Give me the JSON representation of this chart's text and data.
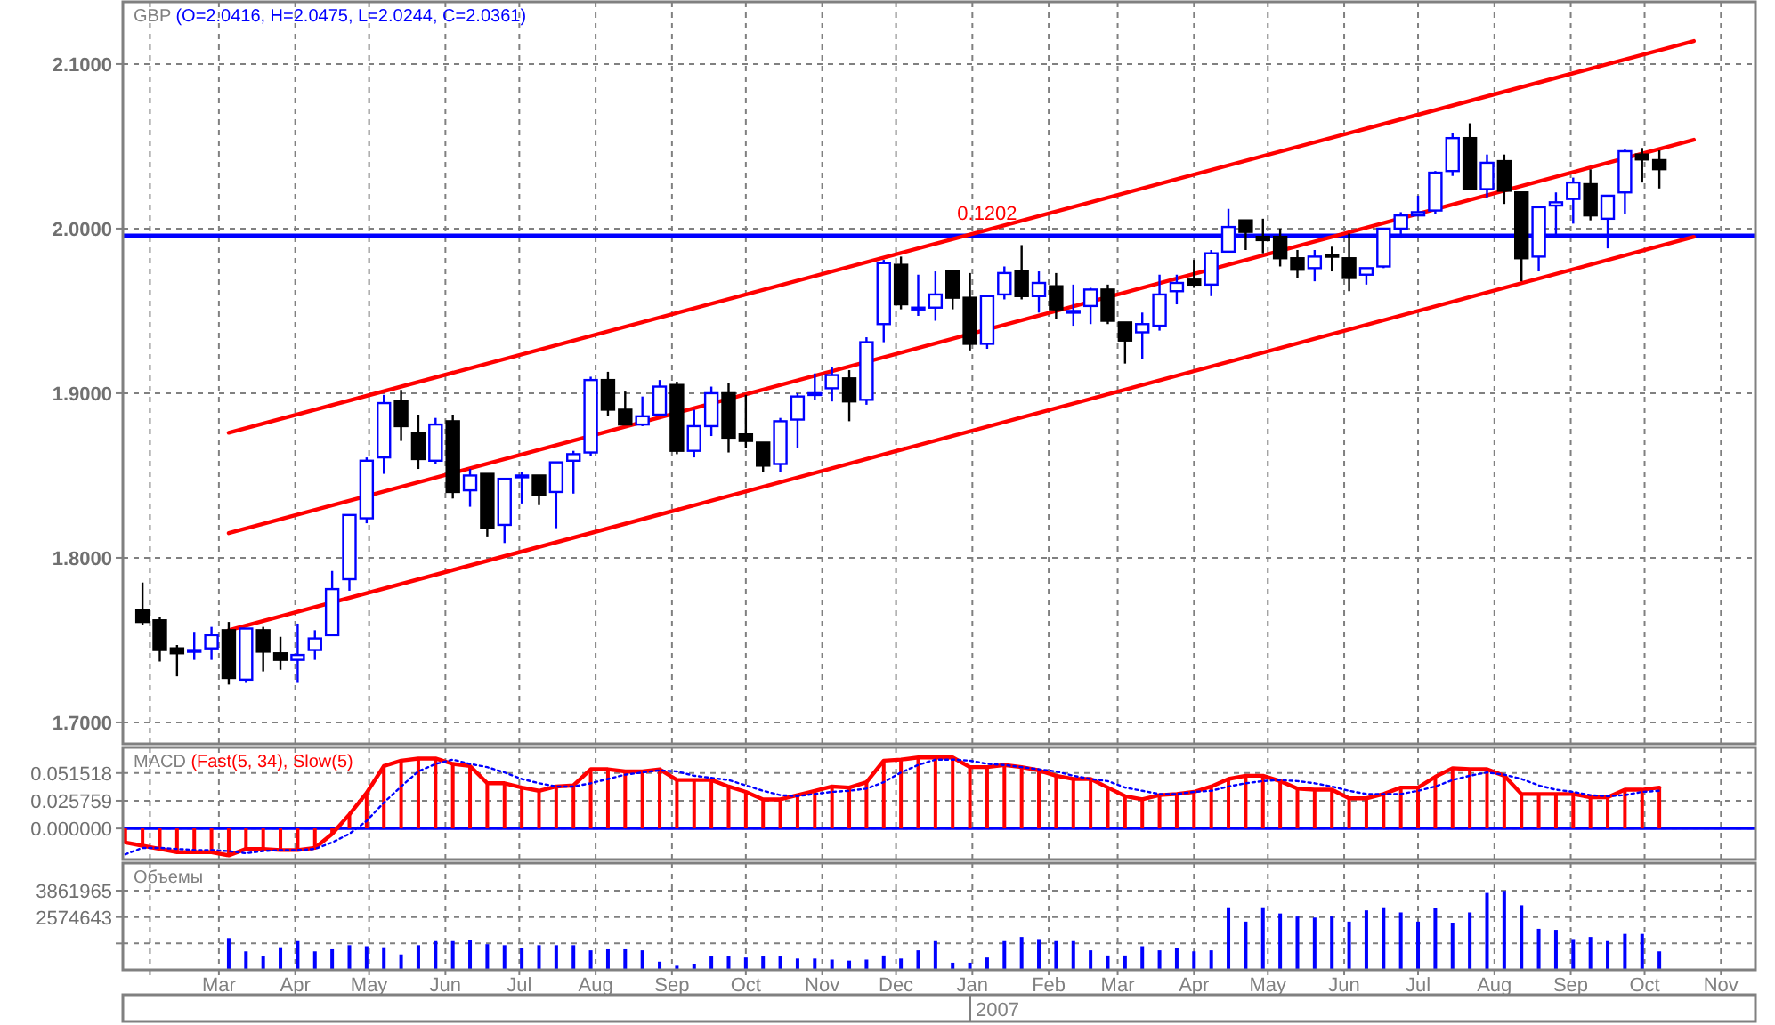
{
  "chart_data": [
    {
      "type": "candlestick",
      "title": "GBP",
      "subtitle": "(O=2.0416, H=2.0475, L=2.0244, C=2.0361)",
      "x": [
        "2006-01-29",
        "2006-02-05",
        "2006-02-12",
        "2006-02-19",
        "2006-02-26",
        "2006-03-05",
        "2006-03-12",
        "2006-03-19",
        "2006-03-26",
        "2006-04-02",
        "2006-04-09",
        "2006-04-16",
        "2006-04-23",
        "2006-04-30",
        "2006-05-07",
        "2006-05-14",
        "2006-05-21",
        "2006-05-28",
        "2006-06-04",
        "2006-06-11",
        "2006-06-18",
        "2006-06-25",
        "2006-07-02",
        "2006-07-09",
        "2006-07-16",
        "2006-07-23",
        "2006-07-30",
        "2006-08-06",
        "2006-08-13",
        "2006-08-20",
        "2006-08-27",
        "2006-09-03",
        "2006-09-10",
        "2006-09-17",
        "2006-09-24",
        "2006-10-01",
        "2006-10-08",
        "2006-10-15",
        "2006-10-22",
        "2006-10-29",
        "2006-11-05",
        "2006-11-12",
        "2006-11-19",
        "2006-11-26",
        "2006-12-03",
        "2006-12-10",
        "2006-12-17",
        "2006-12-24",
        "2006-12-31",
        "2007-01-07",
        "2007-01-14",
        "2007-01-21",
        "2007-01-28",
        "2007-02-04",
        "2007-02-11",
        "2007-02-18",
        "2007-02-25",
        "2007-03-04",
        "2007-03-11",
        "2007-03-18",
        "2007-03-25",
        "2007-04-01",
        "2007-04-08",
        "2007-04-15",
        "2007-04-22",
        "2007-04-29",
        "2007-05-06",
        "2007-05-13",
        "2007-05-20",
        "2007-05-27",
        "2007-06-03",
        "2007-06-10",
        "2007-06-17",
        "2007-06-24",
        "2007-07-01",
        "2007-07-08",
        "2007-07-15",
        "2007-07-22",
        "2007-07-29",
        "2007-08-05",
        "2007-08-12",
        "2007-08-19",
        "2007-08-26",
        "2007-09-02",
        "2007-09-09",
        "2007-09-16",
        "2007-09-23",
        "2007-09-30",
        "2007-10-07"
      ],
      "ohlc": [
        [
          1.768,
          1.785,
          1.759,
          1.761
        ],
        [
          1.762,
          1.764,
          1.737,
          1.744
        ],
        [
          1.745,
          1.747,
          1.728,
          1.742
        ],
        [
          1.743,
          1.755,
          1.738,
          1.744
        ],
        [
          1.745,
          1.758,
          1.738,
          1.753
        ],
        [
          1.756,
          1.761,
          1.723,
          1.727
        ],
        [
          1.726,
          1.757,
          1.724,
          1.757
        ],
        [
          1.756,
          1.758,
          1.731,
          1.743
        ],
        [
          1.742,
          1.752,
          1.732,
          1.738
        ],
        [
          1.738,
          1.76,
          1.724,
          1.741
        ],
        [
          1.744,
          1.756,
          1.738,
          1.751
        ],
        [
          1.753,
          1.792,
          1.753,
          1.781
        ],
        [
          1.787,
          1.826,
          1.78,
          1.826
        ],
        [
          1.824,
          1.861,
          1.821,
          1.859
        ],
        [
          1.861,
          1.899,
          1.851,
          1.894
        ],
        [
          1.895,
          1.902,
          1.871,
          1.88
        ],
        [
          1.876,
          1.887,
          1.854,
          1.86
        ],
        [
          1.859,
          1.885,
          1.857,
          1.881
        ],
        [
          1.883,
          1.887,
          1.836,
          1.84
        ],
        [
          1.841,
          1.854,
          1.831,
          1.85
        ],
        [
          1.851,
          1.851,
          1.813,
          1.818
        ],
        [
          1.82,
          1.848,
          1.809,
          1.848
        ],
        [
          1.849,
          1.852,
          1.833,
          1.85
        ],
        [
          1.85,
          1.85,
          1.832,
          1.838
        ],
        [
          1.84,
          1.858,
          1.818,
          1.858
        ],
        [
          1.859,
          1.865,
          1.839,
          1.863
        ],
        [
          1.864,
          1.91,
          1.862,
          1.908
        ],
        [
          1.908,
          1.913,
          1.886,
          1.89
        ],
        [
          1.89,
          1.901,
          1.881,
          1.881
        ],
        [
          1.881,
          1.898,
          1.88,
          1.886
        ],
        [
          1.887,
          1.908,
          1.886,
          1.904
        ],
        [
          1.905,
          1.907,
          1.863,
          1.865
        ],
        [
          1.865,
          1.89,
          1.861,
          1.88
        ],
        [
          1.88,
          1.904,
          1.874,
          1.9
        ],
        [
          1.9,
          1.906,
          1.864,
          1.873
        ],
        [
          1.875,
          1.899,
          1.867,
          1.871
        ],
        [
          1.87,
          1.87,
          1.852,
          1.856
        ],
        [
          1.857,
          1.885,
          1.852,
          1.883
        ],
        [
          1.884,
          1.9,
          1.867,
          1.898
        ],
        [
          1.899,
          1.912,
          1.896,
          1.9
        ],
        [
          1.903,
          1.916,
          1.895,
          1.911
        ],
        [
          1.909,
          1.914,
          1.883,
          1.895
        ],
        [
          1.896,
          1.934,
          1.893,
          1.931
        ],
        [
          1.942,
          1.981,
          1.931,
          1.979
        ],
        [
          1.978,
          1.983,
          1.951,
          1.954
        ],
        [
          1.951,
          1.972,
          1.947,
          1.952
        ],
        [
          1.952,
          1.974,
          1.944,
          1.96
        ],
        [
          1.974,
          1.974,
          1.951,
          1.958
        ],
        [
          1.958,
          1.973,
          1.926,
          1.93
        ],
        [
          1.93,
          1.959,
          1.927,
          1.959
        ],
        [
          1.96,
          1.977,
          1.957,
          1.973
        ],
        [
          1.974,
          1.99,
          1.957,
          1.959
        ],
        [
          1.959,
          1.974,
          1.949,
          1.967
        ],
        [
          1.965,
          1.973,
          1.945,
          1.951
        ],
        [
          1.949,
          1.966,
          1.941,
          1.95
        ],
        [
          1.953,
          1.964,
          1.942,
          1.963
        ],
        [
          1.963,
          1.966,
          1.942,
          1.944
        ],
        [
          1.943,
          1.943,
          1.918,
          1.932
        ],
        [
          1.937,
          1.949,
          1.921,
          1.942
        ],
        [
          1.941,
          1.972,
          1.938,
          1.96
        ],
        [
          1.962,
          1.972,
          1.954,
          1.967
        ],
        [
          1.969,
          1.981,
          1.964,
          1.966
        ],
        [
          1.966,
          1.987,
          1.959,
          1.985
        ],
        [
          1.986,
          2.012,
          1.986,
          2.001
        ],
        [
          2.005,
          2.005,
          1.987,
          1.998
        ],
        [
          1.995,
          2.006,
          1.985,
          1.993
        ],
        [
          1.995,
          2.0,
          1.977,
          1.982
        ],
        [
          1.982,
          1.987,
          1.97,
          1.975
        ],
        [
          1.976,
          1.987,
          1.968,
          1.983
        ],
        [
          1.984,
          1.989,
          1.974,
          1.983
        ],
        [
          1.982,
          1.997,
          1.962,
          1.97
        ],
        [
          1.972,
          1.976,
          1.966,
          1.976
        ],
        [
          1.977,
          2.0,
          1.976,
          2.0
        ],
        [
          2.0,
          2.01,
          1.994,
          2.008
        ],
        [
          2.008,
          2.02,
          2.008,
          2.01
        ],
        [
          2.011,
          2.035,
          2.009,
          2.034
        ],
        [
          2.035,
          2.058,
          2.032,
          2.055
        ],
        [
          2.055,
          2.064,
          2.024,
          2.024
        ],
        [
          2.024,
          2.045,
          2.019,
          2.04
        ],
        [
          2.041,
          2.045,
          2.015,
          2.023
        ],
        [
          2.022,
          2.022,
          1.968,
          1.982
        ],
        [
          1.983,
          2.013,
          1.974,
          2.013
        ],
        [
          2.014,
          2.022,
          1.996,
          2.016
        ],
        [
          2.018,
          2.031,
          2.003,
          2.028
        ],
        [
          2.027,
          2.036,
          2.005,
          2.008
        ],
        [
          2.006,
          2.02,
          1.988,
          2.02
        ],
        [
          2.022,
          2.048,
          2.009,
          2.047
        ],
        [
          2.045,
          2.049,
          2.028,
          2.042
        ],
        [
          2.0416,
          2.0475,
          2.0244,
          2.0361
        ]
      ],
      "colors": [
        "#000000",
        "#000000",
        "#000000",
        "#0000ff",
        "#0000ff",
        "#000000",
        "#0000ff",
        "#000000",
        "#000000",
        "#0000ff",
        "#0000ff",
        "#0000ff",
        "#0000ff",
        "#0000ff",
        "#0000ff",
        "#000000",
        "#000000",
        "#0000ff",
        "#000000",
        "#0000ff",
        "#000000",
        "#0000ff",
        "#0000ff",
        "#000000",
        "#0000ff",
        "#0000ff",
        "#0000ff",
        "#000000",
        "#000000",
        "#0000ff",
        "#0000ff",
        "#000000",
        "#0000ff",
        "#0000ff",
        "#000000",
        "#000000",
        "#000000",
        "#0000ff",
        "#0000ff",
        "#0000ff",
        "#0000ff",
        "#000000",
        "#0000ff",
        "#0000ff",
        "#000000",
        "#0000ff",
        "#0000ff",
        "#000000",
        "#000000",
        "#0000ff",
        "#0000ff",
        "#000000",
        "#0000ff",
        "#000000",
        "#0000ff",
        "#0000ff",
        "#000000",
        "#000000",
        "#0000ff",
        "#0000ff",
        "#0000ff",
        "#000000",
        "#0000ff",
        "#0000ff",
        "#000000",
        "#000000",
        "#000000",
        "#000000",
        "#0000ff",
        "#000000",
        "#000000",
        "#0000ff",
        "#0000ff",
        "#0000ff",
        "#0000ff",
        "#0000ff",
        "#0000ff",
        "#000000",
        "#0000ff",
        "#000000",
        "#000000",
        "#0000ff",
        "#0000ff",
        "#0000ff",
        "#000000",
        "#0000ff",
        "#0000ff",
        "#000000",
        "#000000"
      ],
      "series": [
        {
          "type": "line",
          "color": "#ff0000",
          "x": [
            "2006-03-05",
            "2007-10-21"
          ],
          "values": [
            1.876,
            2.114
          ]
        },
        {
          "type": "line",
          "color": "#ff0000",
          "x": [
            "2006-03-05",
            "2007-10-21"
          ],
          "values": [
            1.815,
            2.054
          ]
        },
        {
          "type": "line",
          "color": "#ff0000",
          "x": [
            "2006-03-05",
            "2007-10-21"
          ],
          "values": [
            1.756,
            1.995
          ]
        }
      ],
      "xlim": [
        "2006-01-21",
        "2007-11-15"
      ],
      "xticks": [
        {
          "value": "2006-02-01",
          "label": null
        },
        {
          "value": "2006-03-01",
          "label": null
        },
        {
          "value": "2006-04-01",
          "label": null
        },
        {
          "value": "2006-05-01",
          "label": null
        },
        {
          "value": "2006-06-01",
          "label": null
        },
        {
          "value": "2006-07-01",
          "label": null
        },
        {
          "value": "2006-08-01",
          "label": null
        },
        {
          "value": "2006-09-01",
          "label": null
        },
        {
          "value": "2006-10-01",
          "label": null
        },
        {
          "value": "2006-11-01",
          "label": null
        },
        {
          "value": "2006-12-01",
          "label": null
        },
        {
          "value": "2007-01-01",
          "label": null
        },
        {
          "value": "2007-02-01",
          "label": null
        },
        {
          "value": "2007-03-01",
          "label": null
        },
        {
          "value": "2007-04-01",
          "label": null
        },
        {
          "value": "2007-05-01",
          "label": null
        },
        {
          "value": "2007-06-01",
          "label": null
        },
        {
          "value": "2007-07-01",
          "label": null
        },
        {
          "value": "2007-08-01",
          "label": null
        },
        {
          "value": "2007-09-01",
          "label": null
        },
        {
          "value": "2007-10-01",
          "label": null
        },
        {
          "value": "2007-11-01",
          "label": null
        }
      ],
      "ylim": [
        1.687,
        2.1378
      ],
      "yticks": [
        {
          "value": 1.7,
          "label": "1.7000"
        },
        {
          "value": 1.8,
          "label": "1.8000"
        },
        {
          "value": 1.9,
          "label": "1.9000"
        },
        {
          "value": 2.0,
          "label": "2.0000"
        },
        {
          "value": 2.1,
          "label": "2.1000"
        }
      ],
      "ref_lines": [
        {
          "axis": "y",
          "value": 1.9957,
          "color": "#0000ff"
        }
      ],
      "annotations": [
        {
          "text": "0.1202",
          "x": "2007-01-07",
          "y": 2.003
        }
      ],
      "grid": true,
      "tick_labels": "y"
    },
    {
      "type": "bar",
      "title": "MACD",
      "subtitle": "(Fast(5, 34), Slow(5)",
      "x": [
        "2006-01-22",
        "2006-01-29",
        "2006-02-05",
        "2006-02-12",
        "2006-02-19",
        "2006-02-26",
        "2006-03-05",
        "2006-03-12",
        "2006-03-19",
        "2006-03-26",
        "2006-04-02",
        "2006-04-09",
        "2006-04-16",
        "2006-04-23",
        "2006-04-30",
        "2006-05-07",
        "2006-05-14",
        "2006-05-21",
        "2006-05-28",
        "2006-06-04",
        "2006-06-11",
        "2006-06-18",
        "2006-06-25",
        "2006-07-02",
        "2006-07-09",
        "2006-07-16",
        "2006-07-23",
        "2006-07-30",
        "2006-08-06",
        "2006-08-13",
        "2006-08-20",
        "2006-08-27",
        "2006-09-03",
        "2006-09-10",
        "2006-09-17",
        "2006-09-24",
        "2006-10-01",
        "2006-10-08",
        "2006-10-15",
        "2006-10-22",
        "2006-10-29",
        "2006-11-05",
        "2006-11-12",
        "2006-11-19",
        "2006-11-26",
        "2006-12-03",
        "2006-12-10",
        "2006-12-17",
        "2006-12-24",
        "2006-12-31",
        "2007-01-07",
        "2007-01-14",
        "2007-01-21",
        "2007-01-28",
        "2007-02-04",
        "2007-02-11",
        "2007-02-18",
        "2007-02-25",
        "2007-03-04",
        "2007-03-11",
        "2007-03-18",
        "2007-03-25",
        "2007-04-01",
        "2007-04-08",
        "2007-04-15",
        "2007-04-22",
        "2007-04-29",
        "2007-05-06",
        "2007-05-13",
        "2007-05-20",
        "2007-05-27",
        "2007-06-03",
        "2007-06-10",
        "2007-06-17",
        "2007-06-24",
        "2007-07-01",
        "2007-07-08",
        "2007-07-15",
        "2007-07-22",
        "2007-07-29",
        "2007-08-05",
        "2007-08-12",
        "2007-08-19",
        "2007-08-26",
        "2007-09-02",
        "2007-09-09",
        "2007-09-16",
        "2007-09-23",
        "2007-09-30",
        "2007-10-07"
      ],
      "series": [
        {
          "color": "#ff0000",
          "values": [
            -0.013,
            -0.016,
            -0.019,
            -0.022,
            -0.022,
            -0.022,
            -0.025,
            -0.019,
            -0.019,
            -0.02,
            -0.02,
            -0.018,
            -0.005,
            0.013,
            0.033,
            0.058,
            0.063,
            0.065,
            0.065,
            0.06,
            0.058,
            0.042,
            0.042,
            0.038,
            0.035,
            0.039,
            0.04,
            0.055,
            0.055,
            0.053,
            0.053,
            0.055,
            0.045,
            0.045,
            0.045,
            0.039,
            0.034,
            0.027,
            0.027,
            0.031,
            0.035,
            0.039,
            0.038,
            0.043,
            0.063,
            0.064,
            0.066,
            0.066,
            0.066,
            0.057,
            0.057,
            0.059,
            0.057,
            0.054,
            0.049,
            0.046,
            0.046,
            0.038,
            0.03,
            0.027,
            0.031,
            0.032,
            0.034,
            0.039,
            0.046,
            0.049,
            0.049,
            0.044,
            0.037,
            0.036,
            0.036,
            0.028,
            0.028,
            0.032,
            0.038,
            0.038,
            0.048,
            0.056,
            0.055,
            0.055,
            0.049,
            0.032,
            0.032,
            0.032,
            0.032,
            0.029,
            0.029,
            0.036,
            0.036,
            0.038
          ]
        },
        {
          "type": "line",
          "color": "#ff0000",
          "values": [
            -0.013,
            -0.016,
            -0.019,
            -0.022,
            -0.022,
            -0.022,
            -0.025,
            -0.019,
            -0.019,
            -0.02,
            -0.02,
            -0.018,
            -0.005,
            0.013,
            0.033,
            0.058,
            0.063,
            0.065,
            0.065,
            0.06,
            0.058,
            0.042,
            0.042,
            0.038,
            0.035,
            0.039,
            0.04,
            0.055,
            0.055,
            0.053,
            0.053,
            0.055,
            0.045,
            0.045,
            0.045,
            0.039,
            0.034,
            0.027,
            0.027,
            0.031,
            0.035,
            0.039,
            0.038,
            0.043,
            0.063,
            0.064,
            0.066,
            0.066,
            0.066,
            0.057,
            0.057,
            0.059,
            0.057,
            0.054,
            0.049,
            0.046,
            0.046,
            0.038,
            0.03,
            0.027,
            0.031,
            0.032,
            0.034,
            0.039,
            0.046,
            0.049,
            0.049,
            0.044,
            0.037,
            0.036,
            0.036,
            0.028,
            0.028,
            0.032,
            0.038,
            0.038,
            0.048,
            0.056,
            0.055,
            0.055,
            0.049,
            0.032,
            0.032,
            0.032,
            0.032,
            0.029,
            0.029,
            0.036,
            0.036,
            0.038
          ]
        },
        {
          "type": "line",
          "color": "#0000ff",
          "line_style": "dotted",
          "values": [
            -0.024,
            -0.018,
            -0.018,
            -0.019,
            -0.02,
            -0.02,
            -0.021,
            -0.023,
            -0.021,
            -0.02,
            -0.02,
            -0.019,
            -0.013,
            -0.005,
            0.007,
            0.024,
            0.039,
            0.053,
            0.06,
            0.064,
            0.06,
            0.057,
            0.052,
            0.046,
            0.042,
            0.039,
            0.039,
            0.042,
            0.046,
            0.05,
            0.052,
            0.054,
            0.053,
            0.049,
            0.047,
            0.045,
            0.04,
            0.035,
            0.031,
            0.03,
            0.032,
            0.034,
            0.035,
            0.037,
            0.043,
            0.052,
            0.059,
            0.064,
            0.064,
            0.063,
            0.06,
            0.059,
            0.057,
            0.055,
            0.053,
            0.049,
            0.046,
            0.044,
            0.038,
            0.035,
            0.032,
            0.032,
            0.034,
            0.035,
            0.039,
            0.042,
            0.044,
            0.045,
            0.044,
            0.042,
            0.039,
            0.035,
            0.032,
            0.032,
            0.032,
            0.035,
            0.039,
            0.045,
            0.049,
            0.052,
            0.05,
            0.046,
            0.04,
            0.036,
            0.034,
            0.031,
            0.03,
            0.031,
            0.034,
            0.035
          ]
        }
      ],
      "xlim": [
        "2006-01-21",
        "2007-11-15"
      ],
      "xticks": [
        {
          "value": "2006-02-01",
          "label": null
        },
        {
          "value": "2006-03-01",
          "label": null
        },
        {
          "value": "2006-04-01",
          "label": null
        },
        {
          "value": "2006-05-01",
          "label": null
        },
        {
          "value": "2006-06-01",
          "label": null
        },
        {
          "value": "2006-07-01",
          "label": null
        },
        {
          "value": "2006-08-01",
          "label": null
        },
        {
          "value": "2006-09-01",
          "label": null
        },
        {
          "value": "2006-10-01",
          "label": null
        },
        {
          "value": "2006-11-01",
          "label": null
        },
        {
          "value": "2006-12-01",
          "label": null
        },
        {
          "value": "2007-01-01",
          "label": null
        },
        {
          "value": "2007-02-01",
          "label": null
        },
        {
          "value": "2007-03-01",
          "label": null
        },
        {
          "value": "2007-04-01",
          "label": null
        },
        {
          "value": "2007-05-01",
          "label": null
        },
        {
          "value": "2007-06-01",
          "label": null
        },
        {
          "value": "2007-07-01",
          "label": null
        },
        {
          "value": "2007-08-01",
          "label": null
        },
        {
          "value": "2007-09-01",
          "label": null
        },
        {
          "value": "2007-10-01",
          "label": null
        },
        {
          "value": "2007-11-01",
          "label": null
        }
      ],
      "ylim": [
        -0.0288,
        0.0753
      ],
      "yticks": [
        {
          "value": 0,
          "label": "0.000000"
        },
        {
          "value": 0.025759,
          "label": "0.025759"
        },
        {
          "value": 0.051518,
          "label": "0.051518"
        }
      ],
      "ref_lines": [
        {
          "axis": "y",
          "value": 0,
          "color": "#0000ff"
        }
      ],
      "grid": true,
      "tick_labels": "y"
    },
    {
      "type": "bar",
      "title": "Объемы",
      "x": [
        "2006-03-05",
        "2006-03-12",
        "2006-03-19",
        "2006-03-26",
        "2006-04-02",
        "2006-04-09",
        "2006-04-16",
        "2006-04-23",
        "2006-04-30",
        "2006-05-07",
        "2006-05-14",
        "2006-05-21",
        "2006-05-28",
        "2006-06-04",
        "2006-06-11",
        "2006-06-18",
        "2006-06-25",
        "2006-07-02",
        "2006-07-09",
        "2006-07-16",
        "2006-07-23",
        "2006-07-30",
        "2006-08-06",
        "2006-08-13",
        "2006-08-20",
        "2006-08-27",
        "2006-09-03",
        "2006-09-10",
        "2006-09-17",
        "2006-09-24",
        "2006-10-01",
        "2006-10-08",
        "2006-10-15",
        "2006-10-22",
        "2006-10-29",
        "2006-11-05",
        "2006-11-12",
        "2006-11-19",
        "2006-11-26",
        "2006-12-03",
        "2006-12-10",
        "2006-12-17",
        "2006-12-24",
        "2006-12-31",
        "2007-01-07",
        "2007-01-14",
        "2007-01-21",
        "2007-01-28",
        "2007-02-04",
        "2007-02-11",
        "2007-02-18",
        "2007-02-25",
        "2007-03-04",
        "2007-03-11",
        "2007-03-18",
        "2007-03-25",
        "2007-04-01",
        "2007-04-08",
        "2007-04-15",
        "2007-04-22",
        "2007-04-29",
        "2007-05-06",
        "2007-05-13",
        "2007-05-20",
        "2007-05-27",
        "2007-06-03",
        "2007-06-10",
        "2007-06-17",
        "2007-06-24",
        "2007-07-01",
        "2007-07-08",
        "2007-07-15",
        "2007-07-22",
        "2007-07-29",
        "2007-08-05",
        "2007-08-12",
        "2007-08-19",
        "2007-08-26",
        "2007-09-02",
        "2007-09-09",
        "2007-09-16",
        "2007-09-23",
        "2007-09-30",
        "2007-10-07"
      ],
      "values": [
        1550000,
        900000,
        650000,
        1100000,
        1400000,
        900000,
        1000000,
        1200000,
        1150000,
        1100000,
        750000,
        1200000,
        1400000,
        1400000,
        1450000,
        1250000,
        1200000,
        1050000,
        1200000,
        1200000,
        1200000,
        950000,
        1000000,
        1000000,
        950000,
        400000,
        200000,
        300000,
        650000,
        650000,
        600000,
        650000,
        650000,
        550000,
        550000,
        500000,
        450000,
        500000,
        700000,
        550000,
        950000,
        1400000,
        350000,
        350000,
        600000,
        1400000,
        1600000,
        1500000,
        1400000,
        1400000,
        950000,
        700000,
        700000,
        1150000,
        950000,
        1050000,
        900000,
        950000,
        3050000,
        2350000,
        3050000,
        2750000,
        2600000,
        2550000,
        2600000,
        2350000,
        2900000,
        3050000,
        2800000,
        2350000,
        3000000,
        2300000,
        2800000,
        3750000,
        3850000,
        3150000,
        2000000,
        1950000,
        1500000,
        1600000,
        1400000,
        1750000,
        1750000,
        900000
      ],
      "color": "#0000ff",
      "xlim": [
        "2006-01-21",
        "2007-11-15"
      ],
      "xticks": [
        {
          "value": "2006-02-01",
          "label": null
        },
        {
          "value": "2006-03-01",
          "label": "Mar"
        },
        {
          "value": "2006-04-01",
          "label": "Apr"
        },
        {
          "value": "2006-05-01",
          "label": "May"
        },
        {
          "value": "2006-06-01",
          "label": "Jun"
        },
        {
          "value": "2006-07-01",
          "label": "Jul"
        },
        {
          "value": "2006-08-01",
          "label": "Aug"
        },
        {
          "value": "2006-09-01",
          "label": "Sep"
        },
        {
          "value": "2006-10-01",
          "label": "Oct"
        },
        {
          "value": "2006-11-01",
          "label": "Nov"
        },
        {
          "value": "2006-12-01",
          "label": "Dec"
        },
        {
          "value": "2007-01-01",
          "label": "Jan"
        },
        {
          "value": "2007-02-01",
          "label": "Feb"
        },
        {
          "value": "2007-03-01",
          "label": "Mar"
        },
        {
          "value": "2007-04-01",
          "label": "Apr"
        },
        {
          "value": "2007-05-01",
          "label": "May"
        },
        {
          "value": "2007-06-01",
          "label": "Jun"
        },
        {
          "value": "2007-07-01",
          "label": "Jul"
        },
        {
          "value": "2007-08-01",
          "label": "Aug"
        },
        {
          "value": "2007-09-01",
          "label": "Sep"
        },
        {
          "value": "2007-10-01",
          "label": "Oct"
        },
        {
          "value": "2007-11-01",
          "label": "Nov"
        }
      ],
      "ylim": [
        0,
        5208000
      ],
      "yticks": [
        {
          "value": 1287322,
          "label": null
        },
        {
          "value": 2574643,
          "label": "2574643"
        },
        {
          "value": 3861965,
          "label": "3861965"
        }
      ],
      "annotations": [
        "2007"
      ],
      "grid": true
    }
  ]
}
